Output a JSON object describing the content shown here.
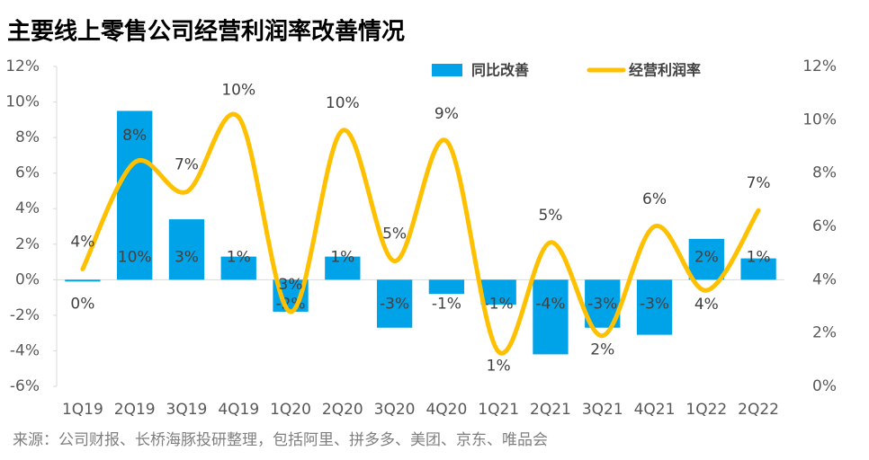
{
  "chart_data": {
    "type": "bar+line",
    "title": "主要线上零售公司经营利润率改善情况",
    "source": "来源：公司财报、长桥海豚投研整理，包括阿里、拼多多、美团、京东、唯品会",
    "categories": [
      "1Q19",
      "2Q19",
      "3Q19",
      "4Q19",
      "1Q20",
      "2Q20",
      "3Q20",
      "4Q20",
      "1Q21",
      "2Q21",
      "3Q21",
      "4Q21",
      "1Q22",
      "2Q22"
    ],
    "series": [
      {
        "name": "同比改善",
        "type": "bar",
        "color": "#00a2e8",
        "axis": "y",
        "values": [
          -0.1,
          9.5,
          3.4,
          1.3,
          -1.8,
          1.3,
          -2.7,
          -0.8,
          -1.4,
          -4.2,
          -2.7,
          -3.1,
          2.3,
          1.2
        ],
        "value_labels": [
          "0%",
          "10%",
          "3%",
          "1%",
          "-2%",
          "1%",
          "-3%",
          "-1%",
          "-1%",
          "-4%",
          "-3%",
          "-3%",
          "2%",
          "1%"
        ]
      },
      {
        "name": "经营利润率",
        "type": "line",
        "color": "#ffc000",
        "axis": "y2",
        "values": [
          4.4,
          8.4,
          7.3,
          10.1,
          2.8,
          9.6,
          4.7,
          9.2,
          1.3,
          5.4,
          1.9,
          6.0,
          3.6,
          6.6
        ],
        "value_labels": [
          "4%",
          "8%",
          "7%",
          "10%",
          "3%",
          "10%",
          "5%",
          "9%",
          "1%",
          "5%",
          "2%",
          "6%",
          "4%",
          "7%"
        ]
      }
    ],
    "ylim": [
      -6,
      12
    ],
    "yticks": [
      {
        "value": -6,
        "label": "-6%"
      },
      {
        "value": -4,
        "label": "-4%"
      },
      {
        "value": -2,
        "label": "-2%"
      },
      {
        "value": 0,
        "label": "0%"
      },
      {
        "value": 2,
        "label": "2%"
      },
      {
        "value": 4,
        "label": "4%"
      },
      {
        "value": 6,
        "label": "6%"
      },
      {
        "value": 8,
        "label": "8%"
      },
      {
        "value": 10,
        "label": "10%"
      },
      {
        "value": 12,
        "label": "12%"
      }
    ],
    "y2lim": [
      0,
      12
    ],
    "y2ticks": [
      {
        "value": 0,
        "label": "0%"
      },
      {
        "value": 2,
        "label": "2%"
      },
      {
        "value": 4,
        "label": "4%"
      },
      {
        "value": 6,
        "label": "6%"
      },
      {
        "value": 8,
        "label": "8%"
      },
      {
        "value": 10,
        "label": "10%"
      },
      {
        "value": 12,
        "label": "12%"
      }
    ]
  }
}
